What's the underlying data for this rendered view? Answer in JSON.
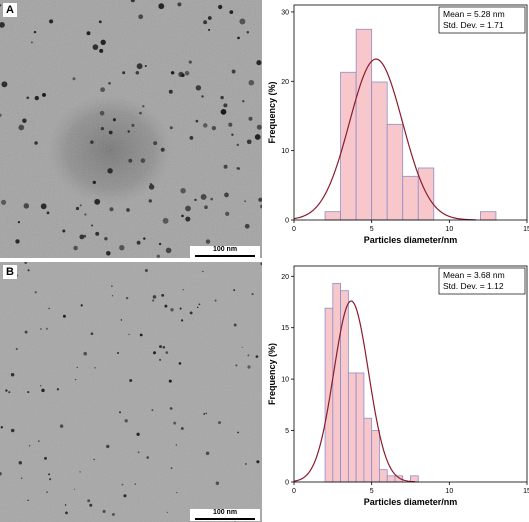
{
  "panels": [
    {
      "letter": "A",
      "scale_bar": "100 nm"
    },
    {
      "letter": "B",
      "scale_bar": "100 nm"
    }
  ],
  "chart_data": [
    {
      "type": "bar",
      "panel": "A",
      "xlabel": "Particles diameter/nm",
      "ylabel": "Frequency (%)",
      "xlim": [
        0,
        15
      ],
      "ylim": [
        0,
        31
      ],
      "xticks": [
        0,
        5,
        10,
        15
      ],
      "yticks": [
        0,
        10,
        20,
        30
      ],
      "bin_width": 1,
      "bins_start": [
        2,
        3,
        4,
        5,
        6,
        7,
        8,
        12
      ],
      "values": [
        1.2,
        21.3,
        27.5,
        19.9,
        13.8,
        6.3,
        7.5,
        1.2
      ],
      "legend": [
        "Mean = 5.28 nm",
        "Std. Dev. = 1.71"
      ],
      "legend_position": "top-right",
      "fit": {
        "type": "normal",
        "mean": 5.28,
        "sd": 1.71,
        "peak": 23.2
      },
      "bar_color": "#f7c7cc",
      "bar_edge": "#8d8fc4",
      "curve_color": "#8b1c2c"
    },
    {
      "type": "bar",
      "panel": "B",
      "xlabel": "Particles diameter/nm",
      "ylabel": "Frequency (%)",
      "xlim": [
        0,
        15
      ],
      "ylim": [
        0,
        21
      ],
      "xticks": [
        0,
        5,
        10,
        15
      ],
      "yticks": [
        0,
        5,
        10,
        15,
        20
      ],
      "bin_width": 0.5,
      "bins_start": [
        2,
        2.5,
        3,
        3.5,
        4,
        4.5,
        5,
        5.5,
        6,
        6.5,
        7.5
      ],
      "values": [
        16.9,
        19.3,
        18.6,
        10.6,
        10.6,
        6.2,
        5.0,
        1.2,
        0.6,
        0.6,
        0.6
      ],
      "legend": [
        "Mean = 3.68 nm",
        "Std. Dev. = 1.12"
      ],
      "legend_position": "top-right",
      "fit": {
        "type": "normal",
        "mean": 3.68,
        "sd": 1.12,
        "peak": 17.6
      },
      "bar_color": "#f7c7cc",
      "bar_edge": "#8d8fc4",
      "curve_color": "#8b1c2c"
    }
  ]
}
